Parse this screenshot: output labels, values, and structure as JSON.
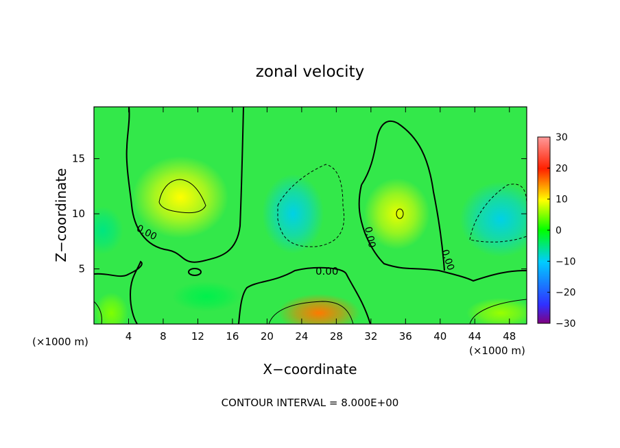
{
  "chart_data": {
    "type": "heatmap",
    "title": "zonal velocity",
    "xlabel": "X−coordinate",
    "ylabel": "Z−coordinate",
    "x_unit_label": "(×1000 m)",
    "x_unit_label_right": "(×1000 m)",
    "xlim": [
      0,
      50
    ],
    "ylim": [
      0,
      19.7
    ],
    "x_ticks": [
      4,
      8,
      12,
      16,
      20,
      24,
      28,
      32,
      36,
      40,
      44,
      48
    ],
    "y_ticks": [
      5,
      10,
      15
    ],
    "colorbar": {
      "range": [
        -30,
        30
      ],
      "ticks": [
        30,
        20,
        10,
        0,
        -10,
        -20,
        -30
      ],
      "tick_labels": [
        "30",
        "20",
        "10",
        "0",
        "−10",
        "−20",
        "−30"
      ],
      "colormap": [
        "#800080",
        "#3030ff",
        "#00ccff",
        "#00ff00",
        "#ffff00",
        "#ff2000",
        "#ff9999"
      ]
    },
    "field_features": [
      {
        "x": 10,
        "z": 11.5,
        "value": 10
      },
      {
        "x": 26,
        "z": 1,
        "value": 16
      },
      {
        "x": 35,
        "z": 10,
        "value": 9
      },
      {
        "x": 23,
        "z": 10,
        "value": -9
      },
      {
        "x": 47,
        "z": 9.5,
        "value": -9
      },
      {
        "x": 1,
        "z": 8.5,
        "value": -5
      },
      {
        "x": 13,
        "z": 2.5,
        "value": -3
      },
      {
        "x": 2,
        "z": 1,
        "value": 5
      },
      {
        "x": 47,
        "z": 1,
        "value": 6
      }
    ],
    "contour_labels": [
      "0.00",
      "0.00",
      "0.00",
      "0.00"
    ],
    "contour_interval_text": "CONTOUR INTERVAL = 8.000E+00"
  }
}
